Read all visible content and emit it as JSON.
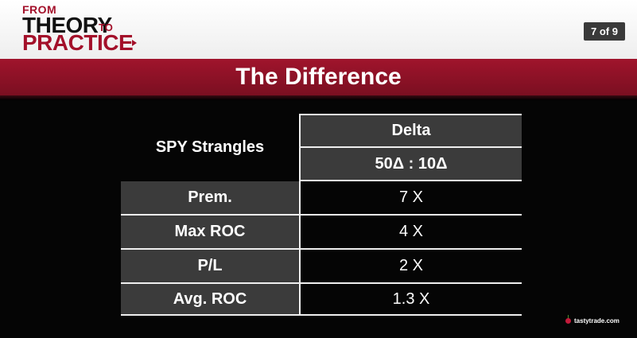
{
  "header": {
    "logo": {
      "from": "FROM",
      "theory": "THEORY",
      "to": "TO",
      "practice": "PRACTICE"
    },
    "page_indicator": "7 of 9"
  },
  "title": "The Difference",
  "table": {
    "corner_label": "SPY Strangles",
    "column_header": "Delta",
    "column_subheader": "50Δ : 10Δ",
    "rows": [
      {
        "label": "Prem.",
        "value": "7 X"
      },
      {
        "label": "Max ROC",
        "value": "4 X"
      },
      {
        "label": "P/L",
        "value": "2 X"
      },
      {
        "label": "Avg. ROC",
        "value": "1.3 X"
      }
    ]
  },
  "footer": {
    "brand": "tastytrade.com"
  },
  "colors": {
    "brand_red": "#a3102a",
    "table_dark": "#3b3b3b",
    "page_badge": "#3a3a3a"
  }
}
